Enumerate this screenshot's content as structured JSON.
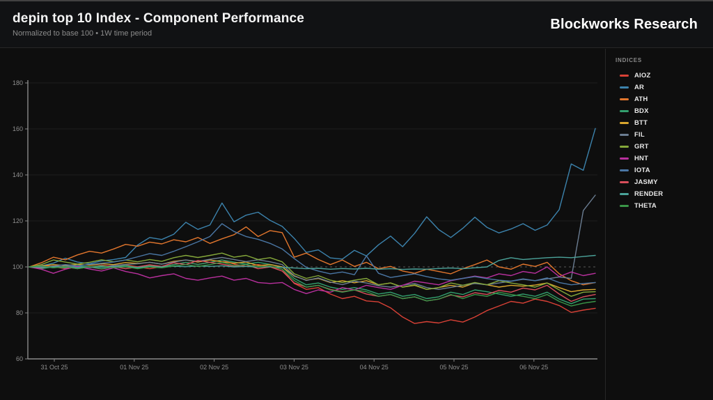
{
  "header": {
    "title": "depin top 10 Index - Component Performance",
    "subtitle": "Normalized to base 100 • 1W time period",
    "brand": "Blockworks Research"
  },
  "legend": {
    "title": "INDICES",
    "position": "right"
  },
  "colors": {
    "page_background": "#0e0e0e",
    "header_background": "#111214",
    "divider": "#272727",
    "axis": "#8a8a8a",
    "gridline": "#1f1f1f",
    "baseline_dash": "#5a5a5a",
    "tick_text": "#8f8f8f"
  },
  "chart_data": {
    "type": "line",
    "title": "depin top 10 Index - Component Performance",
    "subtitle": "Normalized to base 100 • 1W time period",
    "xlabel": "",
    "ylabel": "",
    "ylim": [
      60,
      180
    ],
    "y_ticks": [
      180,
      160,
      140,
      120,
      100,
      80,
      60
    ],
    "baseline": 100,
    "grid": "horizontal",
    "legend_position": "right",
    "x_tick_labels": [
      "31 Oct 25",
      "01 Nov 25",
      "02 Nov 25",
      "03 Nov 25",
      "04 Nov 25",
      "05 Nov 25",
      "06 Nov 25"
    ],
    "series": [
      {
        "name": "AIOZ",
        "color": "#d94136",
        "values": [
          100,
          100.8,
          100.1,
          99.2,
          100.4,
          100,
          99.1,
          100,
          100.9,
          100,
          99.2,
          100.1,
          101,
          102,
          101.1,
          102,
          103,
          101.2,
          100.2,
          101,
          100.1,
          99,
          92.8,
          90.2,
          91,
          88.2,
          86.2,
          87.2,
          85.2,
          84.8,
          82.2,
          78.2,
          75.4,
          76.2,
          75.6,
          77,
          76,
          78.2,
          81,
          83,
          85,
          84.2,
          86,
          85,
          83.2,
          80.2,
          81.2,
          82
        ]
      },
      {
        "name": "AR",
        "color": "#3c83ad",
        "values": [
          100,
          100.5,
          101.6,
          103.8,
          102.1,
          101.4,
          102.6,
          103.2,
          104.1,
          109.5,
          112.8,
          111.9,
          114.2,
          119.4,
          116.3,
          118.2,
          127.8,
          119.6,
          122.5,
          123.8,
          120.2,
          117.6,
          112.4,
          106.3,
          107.4,
          103.9,
          103.4,
          107.2,
          104.8,
          109.6,
          113.4,
          108.8,
          114.6,
          121.8,
          116.2,
          112.8,
          116.8,
          121.6,
          117.2,
          114.8,
          116.5,
          118.8,
          115.9,
          118.2,
          124.9,
          144.8,
          142,
          160.2
        ]
      },
      {
        "name": "ATH",
        "color": "#e2762d",
        "values": [
          100,
          101.8,
          104.2,
          103.1,
          105.2,
          106.8,
          106,
          107.8,
          109.8,
          109,
          110.8,
          110,
          111.8,
          110.9,
          112.8,
          110.2,
          112.2,
          114,
          117.4,
          113.2,
          115.8,
          114.9,
          104.2,
          106,
          103.2,
          101,
          103,
          100.2,
          102,
          99.2,
          100.2,
          98.2,
          97.2,
          99,
          98,
          97,
          99.2,
          101,
          103,
          100,
          99,
          101.2,
          100.2,
          102,
          97,
          94,
          92.2,
          93.2
        ]
      },
      {
        "name": "BDX",
        "color": "#33a06e",
        "values": [
          100,
          99.2,
          100,
          99.6,
          100.5,
          100,
          99.2,
          100,
          100.6,
          99.6,
          100.5,
          100,
          101,
          102,
          101.1,
          102,
          103,
          102.1,
          101.2,
          102,
          101.1,
          100,
          95,
          92.2,
          93,
          91.2,
          90.2,
          91,
          90,
          88.2,
          89,
          87.2,
          88,
          86.2,
          87,
          89,
          88,
          90,
          89.2,
          88.2,
          87.2,
          88.2,
          87.2,
          89,
          86,
          84,
          86,
          86.2
        ]
      },
      {
        "name": "BTT",
        "color": "#d9a62e",
        "values": [
          100,
          100.4,
          101,
          100.6,
          101.1,
          100.7,
          101.4,
          101,
          101.9,
          101.5,
          102,
          101.2,
          102.4,
          103,
          102.1,
          103,
          102.2,
          101.6,
          102.1,
          100.6,
          101,
          100,
          96,
          94.2,
          95,
          93.2,
          94,
          93.1,
          94,
          92.2,
          93,
          91.2,
          92,
          90.2,
          91,
          92,
          91.2,
          93,
          92.2,
          91.2,
          92,
          91.6,
          92.1,
          93,
          91,
          89.2,
          90,
          90.2
        ]
      },
      {
        "name": "FIL",
        "color": "#6b7d92",
        "values": [
          100,
          100.2,
          99.6,
          100.4,
          100.1,
          99.7,
          100.2,
          100.6,
          101.1,
          101.4,
          102,
          101.2,
          102.1,
          103,
          102.4,
          103.3,
          104.1,
          103.2,
          102.3,
          103.1,
          102.2,
          101,
          96.2,
          94.1,
          95.2,
          93.4,
          92.3,
          93.8,
          93,
          91.8,
          91.2,
          92,
          92.8,
          91,
          90.2,
          91.1,
          92,
          92.8,
          92.2,
          93,
          93.8,
          94.6,
          94,
          94.8,
          95.6,
          95,
          124.5,
          131.2
        ]
      },
      {
        "name": "GRT",
        "color": "#85a83a",
        "values": [
          100,
          101,
          103,
          102.1,
          101.2,
          102,
          103.1,
          102.2,
          103,
          102.2,
          103.2,
          102.4,
          104,
          105,
          104.1,
          105,
          106,
          104.2,
          105,
          103.2,
          104,
          102.2,
          97,
          95,
          96.2,
          94.2,
          93.2,
          94.2,
          95,
          92.2,
          93,
          91.2,
          92.2,
          90.2,
          91,
          93,
          92,
          93.2,
          92.2,
          94,
          93,
          92.2,
          91.2,
          93,
          90,
          87.2,
          89,
          89.2
        ]
      },
      {
        "name": "HNT",
        "color": "#b9309e",
        "values": [
          100,
          99,
          97.2,
          99,
          100.2,
          99.1,
          98.2,
          99.6,
          98,
          97,
          95.2,
          96.2,
          97,
          95,
          94.2,
          95.2,
          96,
          94.2,
          95,
          93.2,
          92.8,
          93.2,
          90.2,
          88.4,
          90,
          89,
          91,
          90,
          92,
          91,
          90.2,
          92,
          93.8,
          93,
          92.2,
          94,
          95,
          96,
          95.2,
          97,
          96.2,
          98,
          97.2,
          100,
          95.8,
          97.8,
          96.2,
          97.2
        ]
      },
      {
        "name": "IOTA",
        "color": "#4a76a4",
        "values": [
          100,
          99.6,
          100.4,
          101,
          100.5,
          101.1,
          101.6,
          102.1,
          103,
          104.4,
          105.8,
          105,
          106.8,
          108.8,
          110.9,
          113.2,
          118.8,
          115.4,
          113.2,
          112,
          110.2,
          107.8,
          103.6,
          99.8,
          98.2,
          97,
          97.8,
          96.6,
          104.8,
          97.2,
          95.4,
          96.2,
          97,
          95.8,
          94.8,
          94.2,
          95,
          95.8,
          94.9,
          94.2,
          93.8,
          94.8,
          94,
          95.2,
          93.2,
          92.2,
          92.8,
          93.2
        ]
      },
      {
        "name": "JASMY",
        "color": "#d94f5c",
        "values": [
          100,
          99.6,
          100.4,
          100,
          99.2,
          100,
          100.8,
          100.1,
          99.2,
          100,
          100.9,
          100.2,
          101.8,
          101,
          102.8,
          102,
          101.2,
          100.2,
          101,
          99.2,
          100,
          98.2,
          93,
          91.2,
          92,
          90.2,
          89.2,
          90,
          88.2,
          87.2,
          88,
          86.2,
          87,
          85.2,
          86,
          87.8,
          87,
          88.8,
          88,
          89.8,
          89,
          90.8,
          90,
          92,
          88.2,
          85,
          87,
          88
        ]
      },
      {
        "name": "RENDER",
        "color": "#4ba39a",
        "values": [
          100,
          99.8,
          100.2,
          100,
          99.7,
          100.1,
          99.9,
          100.2,
          100,
          99.8,
          100.1,
          100,
          100.3,
          100.1,
          100.4,
          100.2,
          100.5,
          100,
          100.2,
          99.9,
          100.1,
          99.8,
          99.5,
          99.2,
          99.4,
          99,
          99.3,
          99.1,
          99.4,
          99,
          99.2,
          98.9,
          99.1,
          99,
          99.3,
          99.5,
          99.2,
          99.6,
          100,
          102.8,
          104,
          103.2,
          103.6,
          104,
          104.2,
          104,
          104.5,
          105
        ]
      },
      {
        "name": "THETA",
        "color": "#3a9648",
        "values": [
          100,
          100.4,
          99.6,
          100.1,
          99.2,
          100,
          100.5,
          99.6,
          100.1,
          99.2,
          100,
          99.6,
          100.4,
          101,
          100.2,
          101,
          102,
          100.6,
          101,
          100,
          100.4,
          99,
          94,
          91.2,
          92,
          90,
          89,
          90,
          89.2,
          87.2,
          88,
          86.2,
          87,
          85.2,
          86,
          88,
          86.2,
          88,
          87.2,
          89,
          88,
          87.2,
          86.2,
          88,
          85,
          83,
          84.2,
          85
        ]
      }
    ]
  }
}
